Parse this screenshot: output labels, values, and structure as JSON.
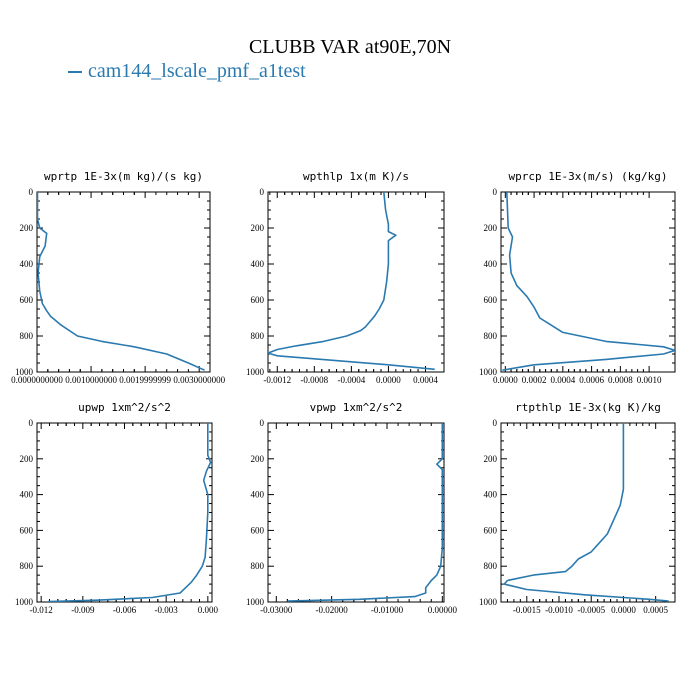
{
  "title": "CLUBB VAR at90E,70N",
  "legend": {
    "label": "cam144_lscale_pmf_a1test",
    "color": "#2a7ab0"
  },
  "chart_data": [
    {
      "type": "line",
      "title": "wprtp  1E-3x(m kg)/(s kg)",
      "xlim": [
        0,
        0.0032
      ],
      "ylim": [
        1000,
        0
      ],
      "xticks": [
        0,
        0.001,
        0.002,
        0.003
      ],
      "xtick_labels": [
        "0.0000000000",
        "0.0010000000",
        "0.0019999999",
        "0.0030000000"
      ],
      "yticks": [
        0,
        200,
        400,
        600,
        800,
        1000
      ],
      "series": [
        {
          "name": "cam144_lscale_pmf_a1test",
          "x": [
            1e-05,
            1e-05,
            5e-05,
            0.00018,
            0.00015,
            5e-05,
            2e-05,
            5e-05,
            0.0001,
            0.00018,
            0.00025,
            0.00045,
            0.00075,
            0.0012,
            0.0018,
            0.0024,
            0.0028,
            0.0031
          ],
          "y": [
            0,
            150,
            200,
            230,
            300,
            360,
            450,
            550,
            620,
            660,
            690,
            740,
            800,
            830,
            860,
            900,
            950,
            990
          ]
        }
      ]
    },
    {
      "type": "line",
      "title": "wpthlp  1x(m K)/s",
      "xlim": [
        -0.0013,
        0.0006
      ],
      "ylim": [
        1000,
        0
      ],
      "xticks": [
        -0.0012,
        -0.0008,
        -0.0004,
        0.0,
        0.0004
      ],
      "xtick_labels": [
        "-0.0012",
        "-0.0008",
        "-0.0004",
        "0.0000",
        "0.0004"
      ],
      "yticks": [
        0,
        200,
        400,
        600,
        800,
        1000
      ],
      "series": [
        {
          "name": "cam144_lscale_pmf_a1test",
          "x": [
            -5e-05,
            -3e-05,
            0.0,
            0.0,
            8e-05,
            0.0,
            0.0,
            -2e-05,
            -5e-05,
            -0.0001,
            -0.00015,
            -0.0002,
            -0.00025,
            -0.0003,
            -0.00045,
            -0.0007,
            -0.001,
            -0.0012,
            -0.0013,
            -0.0012,
            -0.0006,
            0.0,
            0.0005
          ],
          "y": [
            0,
            100,
            180,
            220,
            240,
            270,
            400,
            500,
            600,
            650,
            690,
            720,
            750,
            770,
            800,
            830,
            855,
            875,
            895,
            910,
            935,
            960,
            985
          ]
        }
      ]
    },
    {
      "type": "line",
      "title": "wprcp  1E-3x(m/s) (kg/kg)",
      "xlim": [
        -3e-05,
        0.00118
      ],
      "ylim": [
        1000,
        0
      ],
      "xticks": [
        0.0,
        0.0002,
        0.0004,
        0.0006,
        0.0008,
        0.001
      ],
      "xtick_labels": [
        "0.0000",
        "0.0002",
        "0.0004",
        "0.0006",
        "0.0008",
        "0.0010"
      ],
      "yticks": [
        0,
        200,
        400,
        600,
        800,
        1000
      ],
      "series": [
        {
          "name": "cam144_lscale_pmf_a1test",
          "x": [
            1e-05,
            2e-05,
            5e-05,
            3e-05,
            4e-05,
            8e-05,
            0.00015,
            0.0002,
            0.00024,
            0.0003,
            0.0004,
            0.0007,
            0.0011,
            0.00118,
            0.0011,
            0.0007,
            0.0002,
            -2e-05
          ],
          "y": [
            0,
            200,
            250,
            350,
            450,
            520,
            580,
            640,
            700,
            730,
            780,
            830,
            860,
            880,
            900,
            930,
            960,
            990
          ]
        }
      ]
    },
    {
      "type": "line",
      "title": "upwp  1xm^2/s^2",
      "xlim": [
        -0.0123,
        0.0003
      ],
      "ylim": [
        1000,
        0
      ],
      "xticks": [
        -0.012,
        -0.009,
        -0.006,
        -0.003,
        0.0
      ],
      "xtick_labels": [
        "-0.012",
        "-0.009",
        "-0.006",
        "-0.003",
        "0.000"
      ],
      "yticks": [
        0,
        200,
        400,
        600,
        800,
        1000
      ],
      "series": [
        {
          "name": "cam144_lscale_pmf_a1test",
          "x": [
            0.0,
            0.0,
            0.0002,
            -0.0001,
            -0.0003,
            0.0,
            0.0,
            -0.0001,
            -0.0002,
            -0.0004,
            -0.0008,
            -0.0012,
            -0.0016,
            -0.002,
            -0.004,
            -0.008,
            -0.0115
          ],
          "y": [
            0,
            180,
            220,
            270,
            320,
            400,
            500,
            650,
            750,
            800,
            850,
            890,
            920,
            950,
            975,
            990,
            998
          ]
        }
      ]
    },
    {
      "type": "line",
      "title": "vpwp  1xm^2/s^2",
      "xlim": [
        -0.0315,
        0.0003
      ],
      "ylim": [
        1000,
        0
      ],
      "xticks": [
        -0.03,
        -0.02,
        -0.01,
        0.0
      ],
      "xtick_labels": [
        "-0.03000",
        "-0.02000",
        "-0.01000",
        "0.00000"
      ],
      "yticks": [
        0,
        200,
        400,
        600,
        800,
        1000
      ],
      "series": [
        {
          "name": "cam144_lscale_pmf_a1test",
          "x": [
            0.0,
            0.0,
            -0.001,
            0.0,
            0.0,
            -0.0003,
            -0.001,
            -0.002,
            -0.003,
            -0.003,
            -0.005,
            -0.015,
            -0.028
          ],
          "y": [
            0,
            200,
            230,
            260,
            700,
            800,
            850,
            880,
            920,
            950,
            970,
            985,
            995
          ]
        }
      ]
    },
    {
      "type": "line",
      "title": "rtpthlp  1E-3x(kg K)/kg",
      "xlim": [
        -0.0019,
        0.0008
      ],
      "ylim": [
        1000,
        0
      ],
      "xticks": [
        -0.0015,
        -0.001,
        -0.0005,
        0.0,
        0.0005
      ],
      "xtick_labels": [
        "-0.0015",
        "-0.0010",
        "-0.0005",
        "0.0000",
        "0.0005"
      ],
      "yticks": [
        0,
        200,
        400,
        600,
        800,
        1000
      ],
      "series": [
        {
          "name": "cam144_lscale_pmf_a1test",
          "x": [
            0.0,
            0.0,
            0.0,
            -5e-05,
            -0.00015,
            -0.00025,
            -0.0004,
            -0.0005,
            -0.0007,
            -0.0008,
            -0.0009,
            -0.0014,
            -0.0018,
            -0.00185,
            -0.0015,
            -0.0006,
            0.0004,
            0.0007
          ],
          "y": [
            0,
            250,
            370,
            460,
            540,
            620,
            680,
            720,
            760,
            800,
            830,
            850,
            880,
            900,
            930,
            960,
            985,
            995
          ]
        }
      ]
    }
  ]
}
